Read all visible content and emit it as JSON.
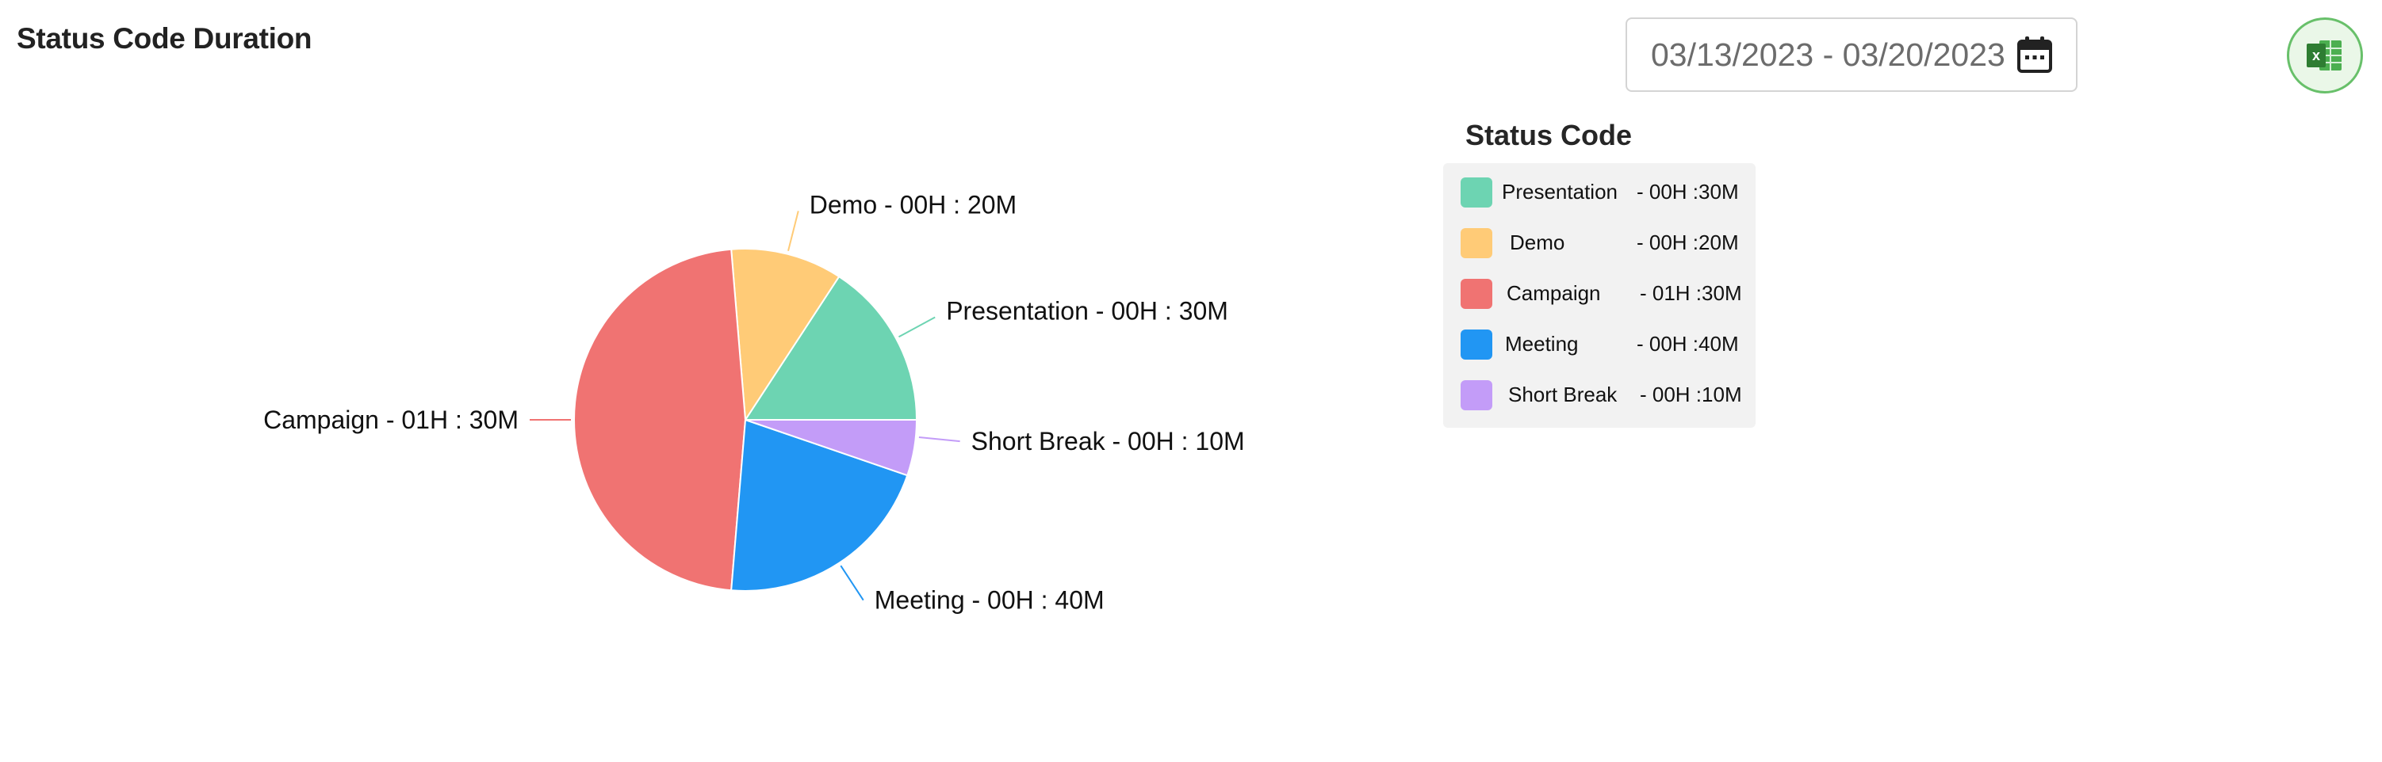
{
  "header": {
    "title": "Status Code Duration"
  },
  "date_picker": {
    "value": "03/13/2023 - 03/20/2023",
    "icon": "calendar-icon"
  },
  "export_button": {
    "icon": "excel-icon",
    "icon_letter": "x"
  },
  "legend": {
    "title": "Status Code",
    "items": [
      {
        "name": "Presentation",
        "value": "- 00H :30M"
      },
      {
        "name": "Demo",
        "value": "- 00H :20M"
      },
      {
        "name": "Campaign",
        "value": "- 01H :30M"
      },
      {
        "name": "Meeting",
        "value": "- 00H :40M"
      },
      {
        "name": "Short Break",
        "value": "- 00H :10M"
      }
    ]
  },
  "chart_data": {
    "type": "pie",
    "title": "Status Code Duration",
    "categories": [
      "Presentation",
      "Demo",
      "Campaign",
      "Meeting",
      "Short Break"
    ],
    "values": [
      30,
      20,
      90,
      40,
      10
    ],
    "slice_labels": [
      "Presentation - 00H : 30M",
      "Demo - 00H : 20M",
      "Campaign - 01H : 30M",
      "Meeting - 00H : 40M",
      "Short Break - 00H : 10M"
    ],
    "colors": [
      "#6dd4b2",
      "#ffcb77",
      "#f07372",
      "#2196f3",
      "#c39cf8"
    ],
    "unit": "minutes",
    "legend_placement": "right"
  }
}
